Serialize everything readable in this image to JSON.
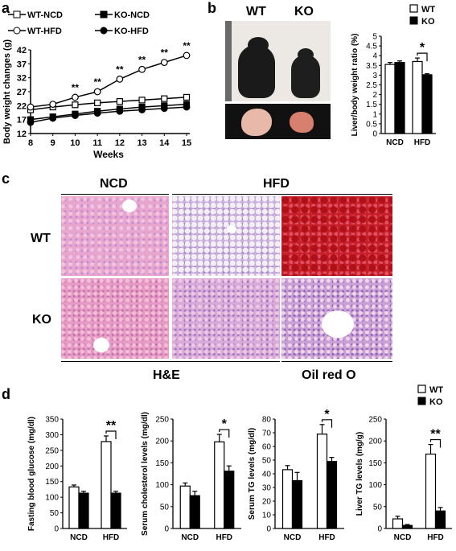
{
  "panels": {
    "a": "a",
    "b": "b",
    "c": "c",
    "d": "d"
  },
  "chart_data": [
    {
      "type": "line",
      "panel": "a",
      "xlabel": "Weeks",
      "ylabel": "Body weight changes (g)",
      "x": [
        8,
        9,
        10,
        11,
        12,
        13,
        14,
        15
      ],
      "xlim": [
        8,
        15
      ],
      "ylim": [
        12,
        42
      ],
      "yticks": [
        12,
        17,
        22,
        27,
        32,
        37,
        42
      ],
      "series": [
        {
          "name": "WT-NCD",
          "marker": "open-square",
          "values": [
            20.5,
            21.5,
            22.3,
            23.0,
            23.5,
            24.0,
            24.5,
            25.0
          ]
        },
        {
          "name": "KO-NCD",
          "marker": "filled-square",
          "values": [
            17.0,
            18.0,
            19.0,
            20.0,
            20.8,
            21.5,
            22.0,
            22.5
          ]
        },
        {
          "name": "WT-HFD",
          "marker": "open-circle",
          "values": [
            21.5,
            22.5,
            25.0,
            27.0,
            31.5,
            35.0,
            37.5,
            40.0
          ]
        },
        {
          "name": "KO-HFD",
          "marker": "filled-circle",
          "values": [
            16.0,
            17.5,
            18.5,
            19.3,
            20.0,
            20.5,
            21.0,
            21.5
          ]
        }
      ],
      "annotations": [
        {
          "x": 10,
          "text": "**"
        },
        {
          "x": 11,
          "text": "**"
        },
        {
          "x": 12,
          "text": "**"
        },
        {
          "x": 13,
          "text": "**"
        },
        {
          "x": 14,
          "text": "**"
        },
        {
          "x": 15,
          "text": "**"
        }
      ]
    },
    {
      "type": "bar",
      "panel": "b",
      "ylabel": "Liver/body weight ratio (%)",
      "categories": [
        "NCD",
        "HFD"
      ],
      "ylim": [
        0,
        5
      ],
      "yticks": [
        0,
        0.5,
        1,
        1.5,
        2,
        2.5,
        3,
        3.5,
        4,
        4.5,
        5
      ],
      "series": [
        {
          "name": "WT",
          "color": "#ffffff",
          "values": [
            3.55,
            3.7
          ],
          "errors": [
            0.1,
            0.18
          ]
        },
        {
          "name": "KO",
          "color": "#000000",
          "values": [
            3.65,
            3.02
          ],
          "errors": [
            0.08,
            0.05
          ]
        }
      ],
      "significance": [
        {
          "category": "HFD",
          "text": "*"
        }
      ]
    },
    {
      "type": "bar",
      "panel": "d",
      "ylabel": "Fasting blood glucose (mg/dl)",
      "categories": [
        "NCD",
        "HFD"
      ],
      "ylim": [
        0,
        350
      ],
      "yticks": [
        0,
        50,
        100,
        150,
        200,
        250,
        300,
        350
      ],
      "series": [
        {
          "name": "WT",
          "values": [
            133,
            278
          ],
          "errors": [
            6,
            18
          ]
        },
        {
          "name": "KO",
          "values": [
            113,
            113
          ],
          "errors": [
            6,
            6
          ]
        }
      ],
      "significance": [
        {
          "category": "HFD",
          "text": "**"
        }
      ]
    },
    {
      "type": "bar",
      "panel": "d",
      "ylabel": "Serum cholesterol levels (mg/dl)",
      "categories": [
        "NCD",
        "HFD"
      ],
      "ylim": [
        0,
        250
      ],
      "yticks": [
        0,
        50,
        100,
        150,
        200,
        250
      ],
      "series": [
        {
          "name": "WT",
          "values": [
            97,
            198
          ],
          "errors": [
            7,
            17
          ]
        },
        {
          "name": "KO",
          "values": [
            75,
            131
          ],
          "errors": [
            10,
            12
          ]
        }
      ],
      "significance": [
        {
          "category": "HFD",
          "text": "*"
        }
      ]
    },
    {
      "type": "bar",
      "panel": "d",
      "ylabel": "Serum TG levels (mg/dl)",
      "categories": [
        "NCD",
        "HFD"
      ],
      "ylim": [
        0,
        80
      ],
      "yticks": [
        0,
        10,
        20,
        30,
        40,
        50,
        60,
        70,
        80
      ],
      "series": [
        {
          "name": "WT",
          "values": [
            43,
            69
          ],
          "errors": [
            3,
            7
          ]
        },
        {
          "name": "KO",
          "values": [
            35,
            49
          ],
          "errors": [
            6,
            3
          ]
        }
      ],
      "significance": [
        {
          "category": "HFD",
          "text": "*"
        }
      ]
    },
    {
      "type": "bar",
      "panel": "d",
      "ylabel": "Liver TG levels (mg/g)",
      "categories": [
        "NCD",
        "HFD"
      ],
      "ylim": [
        0,
        250
      ],
      "yticks": [
        0,
        50,
        100,
        150,
        200,
        250
      ],
      "series": [
        {
          "name": "WT",
          "values": [
            22,
            170
          ],
          "errors": [
            6,
            22
          ]
        },
        {
          "name": "KO",
          "values": [
            7,
            40
          ],
          "errors": [
            2,
            8
          ]
        }
      ],
      "significance": [
        {
          "category": "HFD",
          "text": "**"
        }
      ]
    }
  ],
  "legend_b": {
    "wt": "WT",
    "ko": "KO"
  },
  "legend_d": {
    "wt": "WT",
    "ko": "KO"
  },
  "photos_b": {
    "wt": "WT",
    "ko": "KO"
  },
  "histology": {
    "ncd": "NCD",
    "hfd": "HFD",
    "wt": "WT",
    "ko": "KO",
    "he": "H&E",
    "oil": "Oil red O"
  },
  "colors": {
    "he_pink": "#e8a6cf",
    "he_purple": "#b890d8",
    "oil_red": "#c8202a",
    "mouse_bg": "#ece9e4",
    "liver_wt": "#e8b8a8",
    "liver_ko": "#d88070"
  }
}
